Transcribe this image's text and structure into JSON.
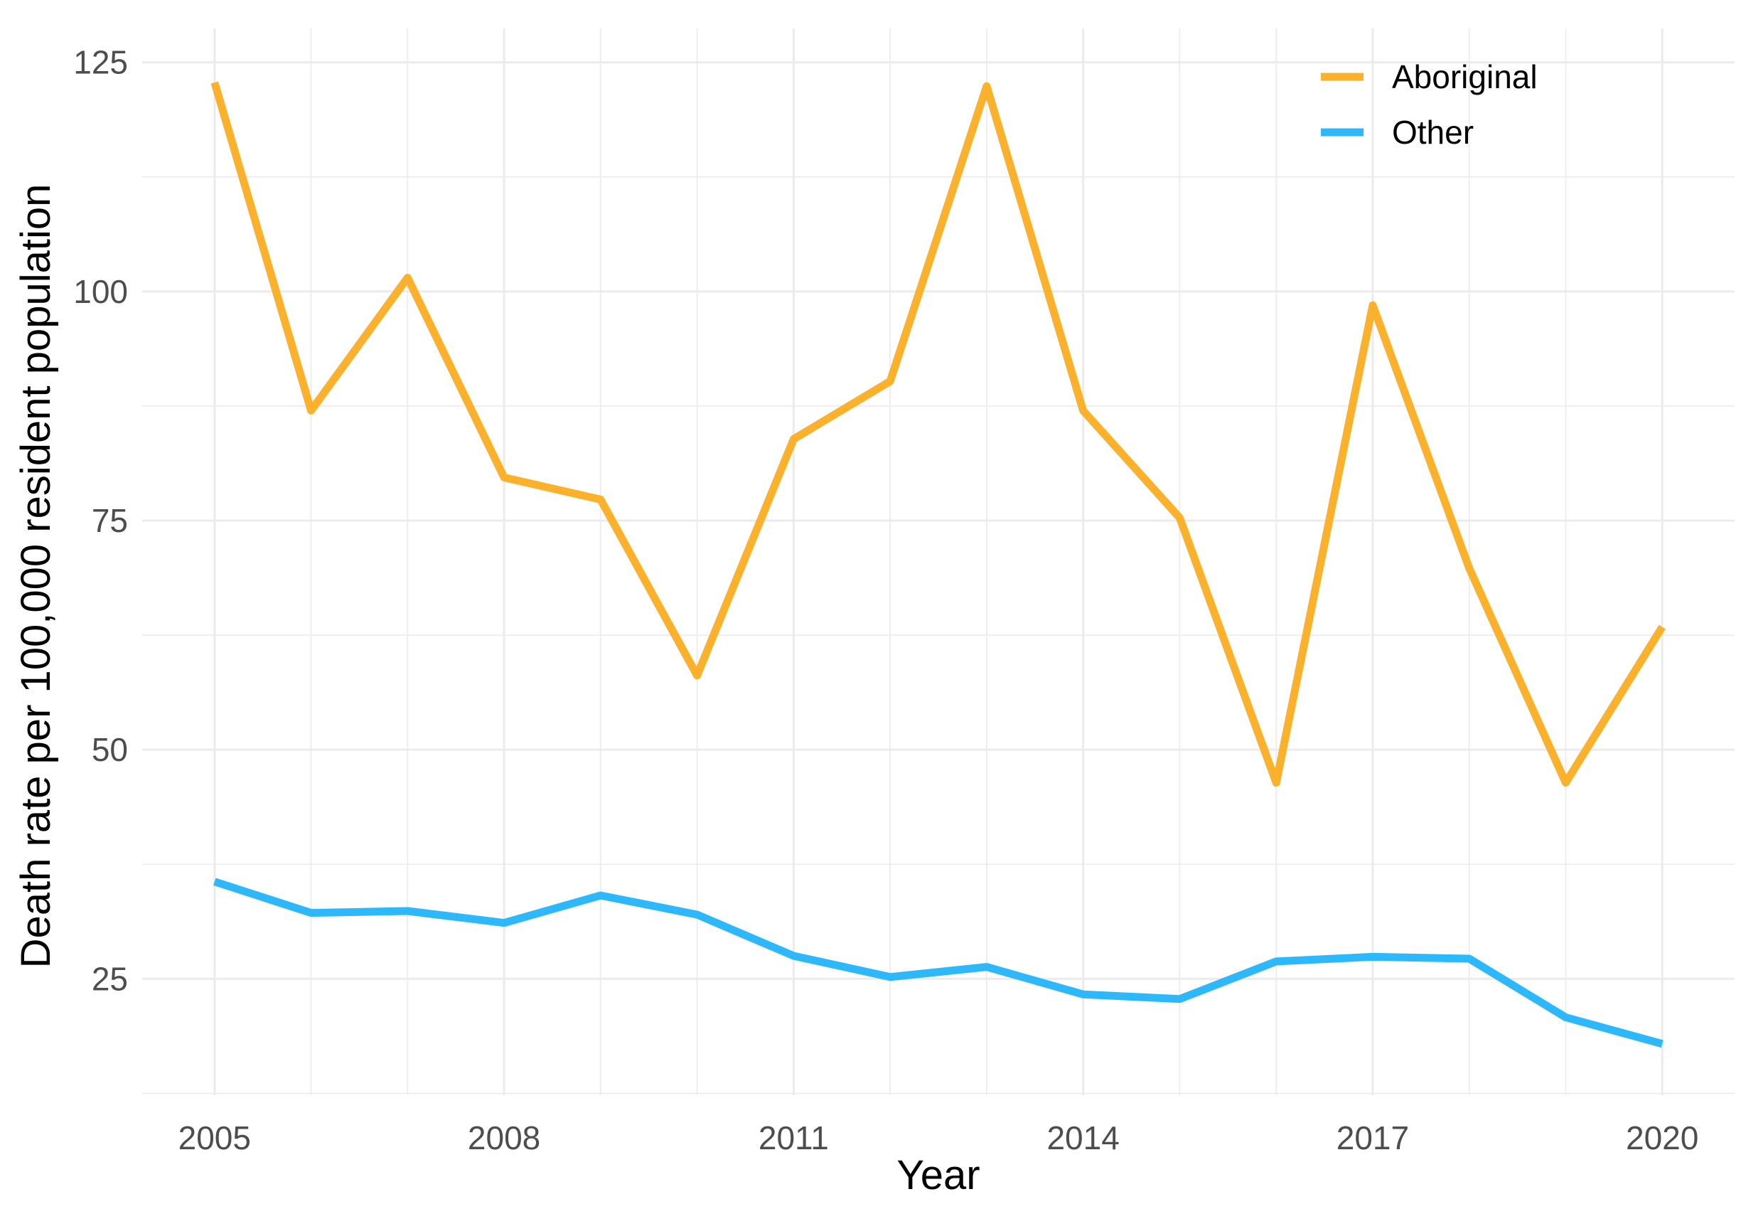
{
  "chart_data": {
    "type": "line",
    "xlabel": "Year",
    "ylabel": "Death rate per 100,000 resident population",
    "x": [
      2005,
      2006,
      2007,
      2008,
      2009,
      2010,
      2011,
      2012,
      2013,
      2014,
      2015,
      2016,
      2017,
      2018,
      2019,
      2020
    ],
    "xlim": [
      2004.25,
      2020.75
    ],
    "ylim": [
      12.3,
      128.7
    ],
    "x_ticks": [
      2005,
      2008,
      2011,
      2014,
      2017,
      2020
    ],
    "y_ticks": [
      25,
      50,
      75,
      100,
      125
    ],
    "grid": true,
    "legend_position": "top-right",
    "series": [
      {
        "name": "Aboriginal",
        "color": "#FBB12C",
        "values": [
          122.8,
          87.0,
          101.5,
          79.7,
          77.3,
          58.1,
          83.9,
          90.2,
          122.4,
          87.0,
          75.3,
          46.4,
          98.5,
          69.8,
          46.4,
          63.4
        ]
      },
      {
        "name": "Other",
        "color": "#2DB8FB",
        "values": [
          35.6,
          32.2,
          32.4,
          31.1,
          34.1,
          32.0,
          27.5,
          25.2,
          26.3,
          23.3,
          22.8,
          26.9,
          27.4,
          27.2,
          20.8,
          17.9
        ]
      }
    ]
  }
}
